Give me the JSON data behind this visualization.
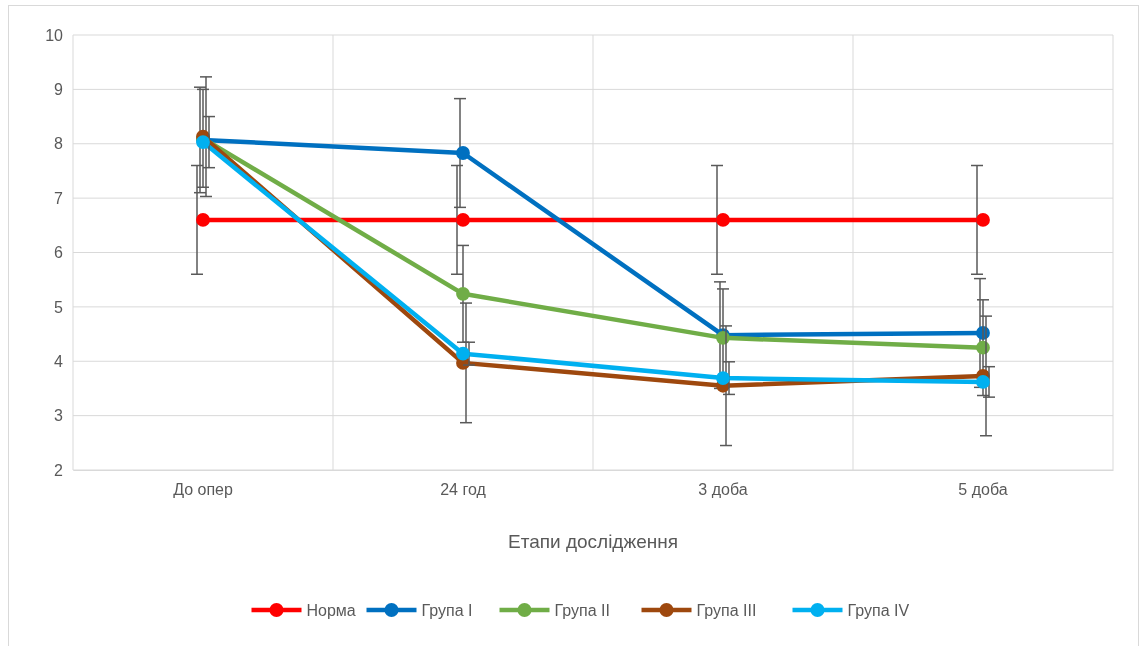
{
  "chart_data": {
    "type": "line",
    "xlabel": "Етапи дослідження",
    "categories": [
      "До опер",
      "24 год",
      "3 доба",
      "5 доба"
    ],
    "ylim": [
      2,
      10
    ],
    "yticks": [
      2,
      3,
      4,
      5,
      6,
      7,
      8,
      9,
      10
    ],
    "grid": true,
    "legend": "bottom",
    "marker": "circle",
    "line_style": "solid",
    "series": [
      {
        "name": "Норма",
        "color": "#ff0000",
        "values": [
          6.6,
          6.6,
          6.6,
          6.6
        ],
        "errors": [
          1,
          1,
          1,
          1
        ]
      },
      {
        "name": "Група I",
        "color": "#0070c0",
        "values": [
          8.07,
          7.83,
          4.48,
          4.52
        ],
        "errors": [
          0.97,
          1,
          0.98,
          1
        ]
      },
      {
        "name": "Група II",
        "color": "#70ad47",
        "values": [
          8.1,
          5.24,
          4.43,
          4.25
        ],
        "errors": [
          0.9,
          0.89,
          0.9,
          0.88
        ]
      },
      {
        "name": "Група III",
        "color": "#9e480e",
        "values": [
          8.13,
          3.97,
          3.55,
          3.73
        ],
        "errors": [
          1.1,
          1.1,
          1.1,
          1.1
        ]
      },
      {
        "name": "Група IV",
        "color": "#00b0f0",
        "values": [
          8.03,
          4.14,
          3.69,
          3.62
        ],
        "errors": [
          0.47,
          0.21,
          0.3,
          0.28
        ]
      }
    ]
  }
}
